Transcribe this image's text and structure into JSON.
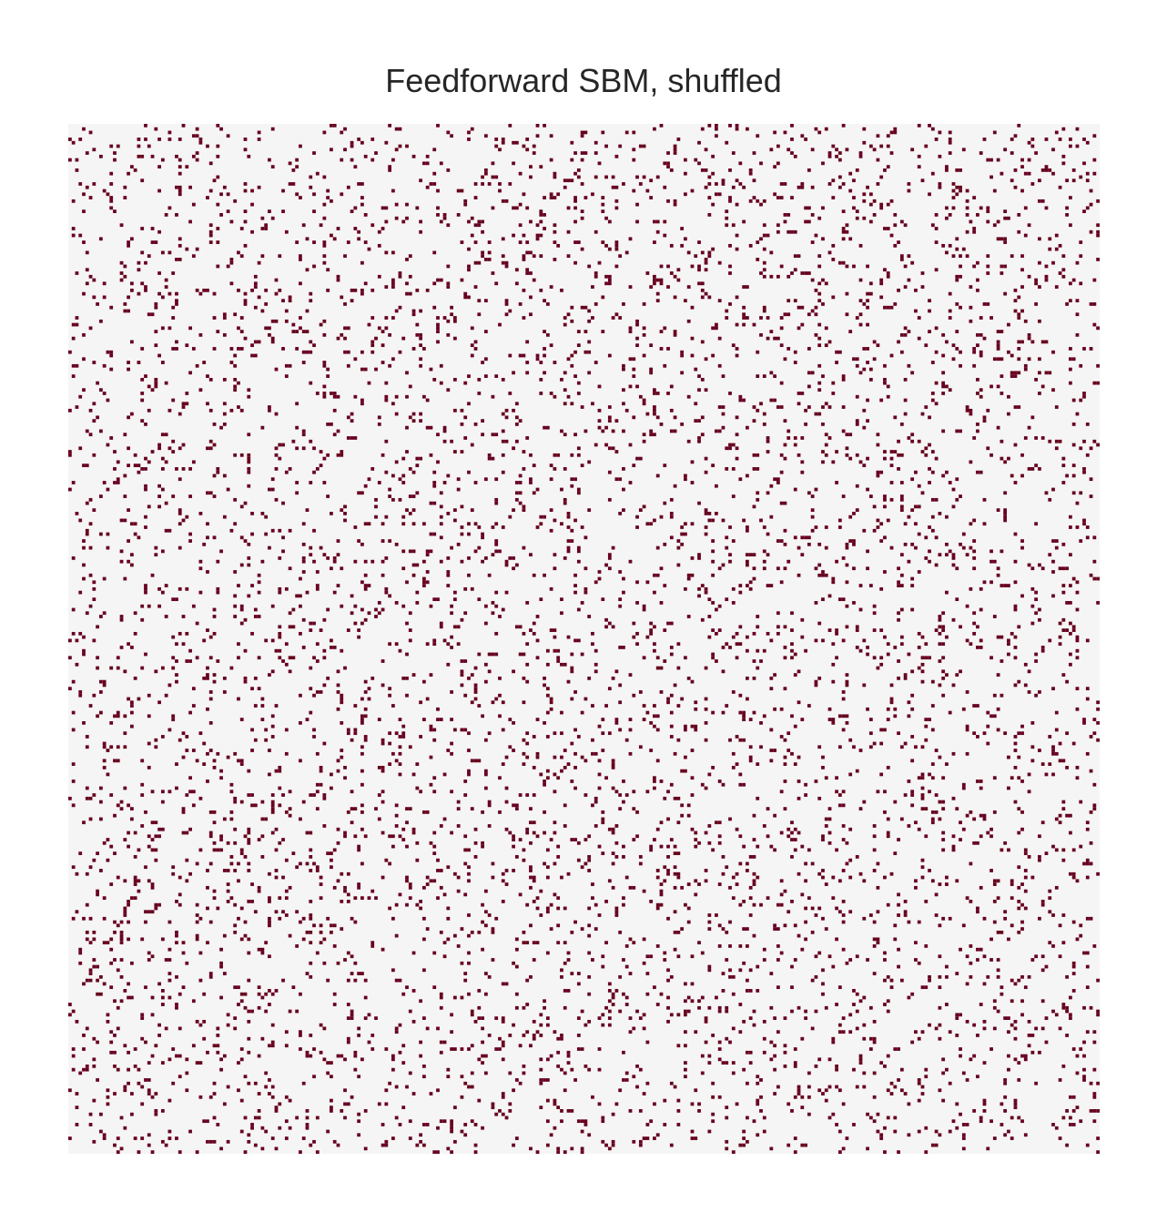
{
  "chart_data": {
    "type": "heatmap",
    "title": "Feedforward SBM, shuffled",
    "xlabel": "",
    "ylabel": "",
    "matrix_kind": "binary adjacency matrix (nodes in shuffled order)",
    "n_nodes": 300,
    "edge_density": 0.07,
    "random_seed": 8675309,
    "grid": false,
    "axes_visible": false,
    "colors": {
      "no_edge": "#f5f5f5",
      "edge": "#67001f"
    }
  }
}
